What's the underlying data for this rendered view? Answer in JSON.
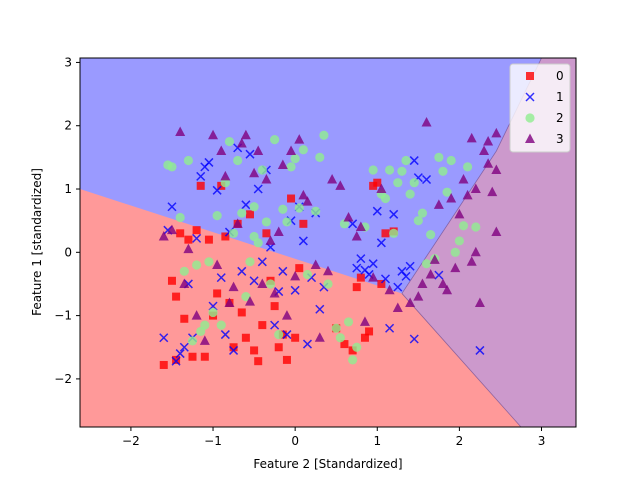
{
  "chart_data": {
    "type": "scatter",
    "xlabel": "Feature 2 [Standardized]",
    "ylabel": "Feature 1 [standardized]",
    "xlim": [
      -2.62,
      3.42
    ],
    "ylim": [
      -2.76,
      3.07
    ],
    "xticks": [
      -2,
      -1,
      0,
      1,
      2,
      3
    ],
    "yticks": [
      -2,
      -1,
      0,
      1,
      2,
      3
    ],
    "legend_position": "top-right",
    "grid": false,
    "regions": [
      {
        "name": "0",
        "color": "#ff9999"
      },
      {
        "name": "1",
        "color": "#9a9aff"
      },
      {
        "name": "3",
        "color": "#cc99cc"
      }
    ],
    "decision_boundaries": {
      "class0_class1": [
        [
          -2.62,
          1.0
        ],
        [
          1.3,
          -0.65
        ]
      ],
      "class1_class3": [
        [
          1.3,
          -0.65
        ],
        [
          2.45,
          1.6
        ],
        [
          3.0,
          3.07
        ]
      ],
      "class0_class3": [
        [
          1.3,
          -0.65
        ],
        [
          2.75,
          -2.76
        ]
      ]
    },
    "series": [
      {
        "name": "0",
        "marker": "square",
        "color": "#ff0000",
        "points": [
          [
            -1.6,
            -1.78
          ],
          [
            -1.45,
            -1.7
          ],
          [
            -1.4,
            0.3
          ],
          [
            -1.35,
            -1.05
          ],
          [
            -1.3,
            0.2
          ],
          [
            -1.25,
            -1.65
          ],
          [
            -1.2,
            0.35
          ],
          [
            -1.15,
            1.05
          ],
          [
            -1.1,
            -1.65
          ],
          [
            -1.05,
            0.2
          ],
          [
            -1.0,
            -1.0
          ],
          [
            -0.95,
            -0.65
          ],
          [
            -0.9,
            1.05
          ],
          [
            -0.85,
            0.25
          ],
          [
            -0.8,
            -0.8
          ],
          [
            -0.75,
            -1.5
          ],
          [
            -0.7,
            0.45
          ],
          [
            -0.65,
            -0.95
          ],
          [
            -0.6,
            -1.35
          ],
          [
            -0.55,
            0.6
          ],
          [
            -0.5,
            -1.55
          ],
          [
            -0.45,
            -1.72
          ],
          [
            -0.4,
            -1.15
          ],
          [
            -0.35,
            0.3
          ],
          [
            -0.3,
            -0.45
          ],
          [
            -0.25,
            -0.85
          ],
          [
            -0.2,
            -1.5
          ],
          [
            -0.15,
            -1.3
          ],
          [
            -0.1,
            -1.7
          ],
          [
            -0.05,
            0.85
          ],
          [
            0.0,
            -1.35
          ],
          [
            0.05,
            -0.25
          ],
          [
            0.1,
            0.45
          ],
          [
            0.5,
            -1.2
          ],
          [
            0.6,
            -1.45
          ],
          [
            0.7,
            -1.55
          ],
          [
            0.75,
            -0.55
          ],
          [
            0.8,
            -0.4
          ],
          [
            0.85,
            -1.35
          ],
          [
            0.9,
            -1.25
          ],
          [
            0.95,
            1.05
          ],
          [
            1.0,
            1.1
          ],
          [
            1.05,
            -0.5
          ],
          [
            1.1,
            0.3
          ],
          [
            1.2,
            0.33
          ],
          [
            -1.5,
            -0.45
          ],
          [
            -1.45,
            -0.7
          ]
        ]
      },
      {
        "name": "1",
        "marker": "x",
        "color": "#0000ff",
        "points": [
          [
            -1.6,
            -1.35
          ],
          [
            -1.55,
            0.35
          ],
          [
            -1.5,
            0.72
          ],
          [
            -1.45,
            -1.72
          ],
          [
            -1.4,
            -1.6
          ],
          [
            -1.35,
            -1.5
          ],
          [
            -1.3,
            -0.5
          ],
          [
            -1.25,
            -1.35
          ],
          [
            -1.2,
            0.22
          ],
          [
            -1.15,
            1.2
          ],
          [
            -1.1,
            1.35
          ],
          [
            -1.05,
            1.42
          ],
          [
            -1.0,
            -0.85
          ],
          [
            -0.95,
            0.98
          ],
          [
            -0.9,
            -0.4
          ],
          [
            -0.85,
            -1.3
          ],
          [
            -0.8,
            0.32
          ],
          [
            -0.75,
            -1.55
          ],
          [
            -0.7,
            1.65
          ],
          [
            -0.65,
            -0.3
          ],
          [
            -0.6,
            0.75
          ],
          [
            -0.55,
            1.55
          ],
          [
            -0.5,
            -0.45
          ],
          [
            -0.45,
            1.0
          ],
          [
            -0.4,
            -0.15
          ],
          [
            -0.35,
            1.3
          ],
          [
            -0.3,
            0.08
          ],
          [
            -0.25,
            -1.15
          ],
          [
            -0.2,
            -0.62
          ],
          [
            -0.15,
            -0.3
          ],
          [
            -0.1,
            -1.3
          ],
          [
            -0.05,
            0.5
          ],
          [
            0.0,
            -0.6
          ],
          [
            0.05,
            0.72
          ],
          [
            0.1,
            0.18
          ],
          [
            0.15,
            -1.45
          ],
          [
            0.2,
            -0.4
          ],
          [
            0.25,
            0.62
          ],
          [
            0.3,
            -0.9
          ],
          [
            0.35,
            -0.55
          ],
          [
            0.7,
            0.45
          ],
          [
            0.75,
            -0.25
          ],
          [
            0.8,
            -0.1
          ],
          [
            0.85,
            -0.28
          ],
          [
            0.9,
            -0.35
          ],
          [
            0.95,
            -0.18
          ],
          [
            1.0,
            0.65
          ],
          [
            1.05,
            0.15
          ],
          [
            1.1,
            -0.42
          ],
          [
            1.15,
            -1.2
          ],
          [
            1.2,
            0.6
          ],
          [
            1.25,
            -0.55
          ],
          [
            1.3,
            -0.3
          ],
          [
            1.35,
            -0.38
          ],
          [
            1.4,
            -0.22
          ],
          [
            1.45,
            1.45
          ],
          [
            1.5,
            1.18
          ],
          [
            1.6,
            1.15
          ],
          [
            1.75,
            -0.36
          ],
          [
            2.25,
            -1.55
          ],
          [
            1.45,
            -1.37
          ]
        ]
      },
      {
        "name": "2",
        "marker": "circle",
        "color": "#90ee90",
        "points": [
          [
            -1.55,
            1.38
          ],
          [
            -1.5,
            1.35
          ],
          [
            -1.4,
            0.55
          ],
          [
            -1.35,
            -0.3
          ],
          [
            -1.3,
            1.45
          ],
          [
            -1.25,
            -1.4
          ],
          [
            -1.2,
            -0.2
          ],
          [
            -1.15,
            -1.25
          ],
          [
            -1.1,
            -1.15
          ],
          [
            -1.05,
            -0.15
          ],
          [
            -1.0,
            -0.95
          ],
          [
            -0.95,
            0.58
          ],
          [
            -0.9,
            -1.15
          ],
          [
            -0.85,
            1.1
          ],
          [
            -0.8,
            1.75
          ],
          [
            -0.75,
            0.3
          ],
          [
            -0.7,
            1.45
          ],
          [
            -0.65,
            0.62
          ],
          [
            -0.6,
            -0.7
          ],
          [
            -0.55,
            -0.15
          ],
          [
            -0.5,
            0.72
          ],
          [
            -0.45,
            0.15
          ],
          [
            -0.4,
            1.3
          ],
          [
            -0.35,
            0.48
          ],
          [
            -0.3,
            -0.5
          ],
          [
            -0.25,
            1.78
          ],
          [
            -0.2,
            -1.3
          ],
          [
            -0.15,
            0.68
          ],
          [
            -0.1,
            0.48
          ],
          [
            -0.05,
            1.35
          ],
          [
            0.0,
            1.48
          ],
          [
            0.05,
            0.7
          ],
          [
            0.1,
            1.62
          ],
          [
            0.15,
            -0.35
          ],
          [
            0.25,
            0.65
          ],
          [
            0.3,
            1.5
          ],
          [
            0.35,
            1.85
          ],
          [
            0.5,
            -1.2
          ],
          [
            0.55,
            -1.35
          ],
          [
            0.6,
            0.45
          ],
          [
            0.65,
            -1.1
          ],
          [
            0.7,
            -1.7
          ],
          [
            0.75,
            -1.5
          ],
          [
            0.85,
            0.4
          ],
          [
            0.95,
            1.3
          ],
          [
            1.05,
            0.92
          ],
          [
            1.1,
            0.85
          ],
          [
            1.15,
            1.3
          ],
          [
            1.2,
            0.3
          ],
          [
            1.25,
            1.1
          ],
          [
            1.3,
            1.28
          ],
          [
            1.35,
            1.45
          ],
          [
            1.4,
            0.92
          ],
          [
            1.45,
            1.1
          ],
          [
            1.5,
            0.5
          ],
          [
            1.55,
            0.62
          ],
          [
            1.6,
            -0.18
          ],
          [
            1.65,
            0.28
          ],
          [
            1.7,
            -0.1
          ],
          [
            1.75,
            1.5
          ],
          [
            1.8,
            1.28
          ],
          [
            1.85,
            0.95
          ],
          [
            1.9,
            1.45
          ],
          [
            1.95,
            0.0
          ],
          [
            2.0,
            0.18
          ],
          [
            2.05,
            0.42
          ],
          [
            2.1,
            1.35
          ],
          [
            2.2,
            0.4
          ],
          [
            -0.5,
            0.25
          ],
          [
            0.4,
            -0.5
          ]
        ]
      },
      {
        "name": "3",
        "marker": "triangle",
        "color": "#800080",
        "points": [
          [
            -1.6,
            0.25
          ],
          [
            -1.5,
            0.35
          ],
          [
            -1.4,
            1.9
          ],
          [
            -1.35,
            -0.5
          ],
          [
            -1.3,
            0.05
          ],
          [
            -1.2,
            -1.0
          ],
          [
            -1.1,
            -1.4
          ],
          [
            -1.0,
            1.85
          ],
          [
            -0.95,
            -0.2
          ],
          [
            -0.9,
            1.6
          ],
          [
            -0.85,
            1.2
          ],
          [
            -0.8,
            -0.8
          ],
          [
            -0.75,
            -0.55
          ],
          [
            -0.7,
            0.45
          ],
          [
            -0.65,
            1.72
          ],
          [
            -0.6,
            1.85
          ],
          [
            -0.55,
            -0.78
          ],
          [
            -0.5,
            1.25
          ],
          [
            -0.45,
            1.6
          ],
          [
            -0.4,
            -0.5
          ],
          [
            -0.35,
            1.15
          ],
          [
            -0.3,
            0.18
          ],
          [
            -0.25,
            -0.65
          ],
          [
            -0.2,
            0.32
          ],
          [
            -0.15,
            1.38
          ],
          [
            -0.1,
            -1.0
          ],
          [
            -0.05,
            1.6
          ],
          [
            0.0,
            -0.38
          ],
          [
            0.05,
            1.78
          ],
          [
            0.1,
            0.9
          ],
          [
            0.15,
            0.8
          ],
          [
            0.25,
            -0.2
          ],
          [
            0.3,
            -1.35
          ],
          [
            0.4,
            -0.3
          ],
          [
            0.45,
            1.15
          ],
          [
            0.55,
            1.05
          ],
          [
            0.65,
            0.55
          ],
          [
            0.75,
            0.25
          ],
          [
            0.8,
            0.4
          ],
          [
            0.85,
            -1.1
          ],
          [
            0.95,
            -0.4
          ],
          [
            1.05,
            1.0
          ],
          [
            1.15,
            -0.6
          ],
          [
            1.25,
            -0.88
          ],
          [
            1.4,
            -0.8
          ],
          [
            1.5,
            -0.7
          ],
          [
            1.55,
            -0.5
          ],
          [
            1.6,
            2.05
          ],
          [
            1.65,
            -0.35
          ],
          [
            1.7,
            -0.12
          ],
          [
            1.75,
            0.75
          ],
          [
            1.8,
            -0.5
          ],
          [
            1.85,
            -0.6
          ],
          [
            1.9,
            0.85
          ],
          [
            1.95,
            -0.25
          ],
          [
            2.0,
            0.6
          ],
          [
            2.05,
            1.15
          ],
          [
            2.1,
            0.9
          ],
          [
            2.15,
            -0.15
          ],
          [
            2.2,
            0.0
          ],
          [
            2.25,
            -0.8
          ],
          [
            2.3,
            1.6
          ],
          [
            2.35,
            1.4
          ],
          [
            2.4,
            0.95
          ],
          [
            2.45,
            1.88
          ],
          [
            2.45,
            1.3
          ],
          [
            2.45,
            0.32
          ],
          [
            2.35,
            1.75
          ],
          [
            2.2,
            1.0
          ],
          [
            2.15,
            1.8
          ]
        ]
      }
    ]
  }
}
